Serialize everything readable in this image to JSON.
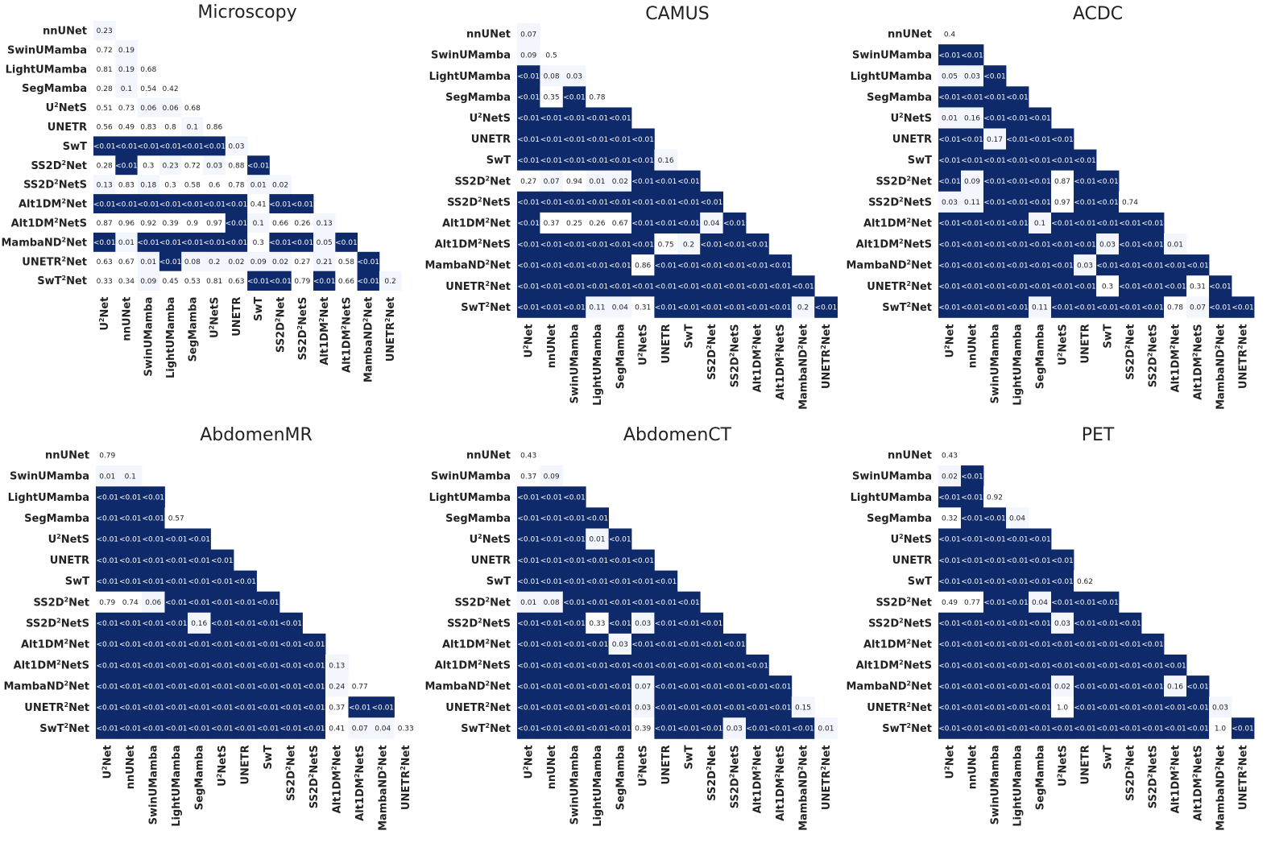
{
  "colors": {
    "significant": "#0e2a6b",
    "low": "#ffffff",
    "high": "#f3f6fc",
    "text_dark": "#222222",
    "text_light": "#ffffff"
  },
  "labels": [
    "U2Net",
    "nnUNet",
    "SwinUMamba",
    "LightUMamba",
    "SegMamba",
    "U2NetS",
    "UNETR",
    "SwT",
    "SS2D2Net",
    "SS2D2NetS",
    "Alt1DM2Net",
    "Alt1DM2NetS",
    "MambaND2Net",
    "UNETR2Net",
    "SwT2Net"
  ],
  "chart_data": [
    {
      "type": "heatmap",
      "title": "Microscopy",
      "rows": [
        [
          "0.23"
        ],
        [
          "0.72",
          "0.19"
        ],
        [
          "0.81",
          "0.19",
          "0.68"
        ],
        [
          "0.28",
          "0.1",
          "0.54",
          "0.42"
        ],
        [
          "0.51",
          "0.73",
          "0.06",
          "0.06",
          "0.68"
        ],
        [
          "0.56",
          "0.49",
          "0.83",
          "0.8",
          "0.1",
          "0.86"
        ],
        [
          "<0.01",
          "<0.01",
          "<0.01",
          "<0.01",
          "<0.01",
          "<0.01",
          "0.03"
        ],
        [
          "0.28",
          "<0.01",
          "0.3",
          "0.23",
          "0.72",
          "0.03",
          "0.88",
          "<0.01"
        ],
        [
          "0.13",
          "0.83",
          "0.18",
          "0.3",
          "0.58",
          "0.6",
          "0.78",
          "0.01",
          "0.02"
        ],
        [
          "<0.01",
          "<0.01",
          "<0.01",
          "<0.01",
          "<0.01",
          "<0.01",
          "<0.01",
          "0.41",
          "<0.01",
          "<0.01"
        ],
        [
          "0.87",
          "0.96",
          "0.92",
          "0.39",
          "0.9",
          "0.97",
          "<0.01",
          "0.1",
          "0.66",
          "0.26",
          "0.13"
        ],
        [
          "<0.01",
          "0.01",
          "<0.01",
          "<0.01",
          "<0.01",
          "<0.01",
          "<0.01",
          "0.3",
          "<0.01",
          "<0.01",
          "0.05",
          "<0.01"
        ],
        [
          "0.63",
          "0.67",
          "0.01",
          "<0.01",
          "0.08",
          "0.2",
          "0.02",
          "0.09",
          "0.02",
          "0.27",
          "0.21",
          "0.58",
          "<0.01"
        ],
        [
          "0.33",
          "0.34",
          "0.09",
          "0.45",
          "0.53",
          "0.81",
          "0.63",
          "<0.01",
          "<0.01",
          "0.79",
          "<0.01",
          "0.66",
          "<0.01",
          "0.2"
        ]
      ]
    },
    {
      "type": "heatmap",
      "title": "CAMUS",
      "rows": [
        [
          "0.07"
        ],
        [
          "0.09",
          "0.5"
        ],
        [
          "<0.01",
          "0.08",
          "0.03"
        ],
        [
          "<0.01",
          "0.35",
          "<0.01",
          "0.78"
        ],
        [
          "<0.01",
          "<0.01",
          "<0.01",
          "<0.01",
          "<0.01"
        ],
        [
          "<0.01",
          "<0.01",
          "<0.01",
          "<0.01",
          "<0.01",
          "<0.01"
        ],
        [
          "<0.01",
          "<0.01",
          "<0.01",
          "<0.01",
          "<0.01",
          "<0.01",
          "0.16"
        ],
        [
          "0.27",
          "0.07",
          "0.94",
          "0.01",
          "0.02",
          "<0.01",
          "<0.01",
          "<0.01"
        ],
        [
          "<0.01",
          "<0.01",
          "<0.01",
          "<0.01",
          "<0.01",
          "<0.01",
          "<0.01",
          "<0.01",
          "<0.01"
        ],
        [
          "<0.01",
          "0.37",
          "0.25",
          "0.26",
          "0.67",
          "<0.01",
          "<0.01",
          "<0.01",
          "0.04",
          "<0.01"
        ],
        [
          "<0.01",
          "<0.01",
          "<0.01",
          "<0.01",
          "<0.01",
          "<0.01",
          "0.75",
          "0.2",
          "<0.01",
          "<0.01",
          "<0.01"
        ],
        [
          "<0.01",
          "<0.01",
          "<0.01",
          "<0.01",
          "<0.01",
          "0.86",
          "<0.01",
          "<0.01",
          "<0.01",
          "<0.01",
          "<0.01",
          "<0.01"
        ],
        [
          "<0.01",
          "<0.01",
          "<0.01",
          "<0.01",
          "<0.01",
          "<0.01",
          "<0.01",
          "<0.01",
          "<0.01",
          "<0.01",
          "<0.01",
          "<0.01",
          "<0.01"
        ],
        [
          "<0.01",
          "<0.01",
          "<0.01",
          "0.11",
          "0.04",
          "0.31",
          "<0.01",
          "<0.01",
          "<0.01",
          "<0.01",
          "<0.01",
          "<0.01",
          "0.2",
          "<0.01"
        ]
      ]
    },
    {
      "type": "heatmap",
      "title": "ACDC",
      "rows": [
        [
          "0.4"
        ],
        [
          "<0.01",
          "<0.01"
        ],
        [
          "0.05",
          "0.03",
          "<0.01"
        ],
        [
          "<0.01",
          "<0.01",
          "<0.01",
          "<0.01"
        ],
        [
          "0.01",
          "0.16",
          "<0.01",
          "<0.01",
          "<0.01"
        ],
        [
          "<0.01",
          "<0.01",
          "0.17",
          "<0.01",
          "<0.01",
          "<0.01"
        ],
        [
          "<0.01",
          "<0.01",
          "<0.01",
          "<0.01",
          "<0.01",
          "<0.01",
          "<0.01"
        ],
        [
          "<0.01",
          "0.09",
          "<0.01",
          "<0.01",
          "<0.01",
          "0.87",
          "<0.01",
          "<0.01"
        ],
        [
          "0.03",
          "0.11",
          "<0.01",
          "<0.01",
          "<0.01",
          "0.97",
          "<0.01",
          "<0.01",
          "0.74"
        ],
        [
          "<0.01",
          "<0.01",
          "<0.01",
          "<0.01",
          "0.1",
          "<0.01",
          "<0.01",
          "<0.01",
          "<0.01",
          "<0.01"
        ],
        [
          "<0.01",
          "<0.01",
          "<0.01",
          "<0.01",
          "<0.01",
          "<0.01",
          "<0.01",
          "0.03",
          "<0.01",
          "<0.01",
          "0.01"
        ],
        [
          "<0.01",
          "<0.01",
          "<0.01",
          "<0.01",
          "<0.01",
          "<0.01",
          "0.03",
          "<0.01",
          "<0.01",
          "<0.01",
          "<0.01",
          "<0.01"
        ],
        [
          "<0.01",
          "<0.01",
          "<0.01",
          "<0.01",
          "<0.01",
          "<0.01",
          "<0.01",
          "0.3",
          "<0.01",
          "<0.01",
          "<0.01",
          "0.31",
          "<0.01"
        ],
        [
          "<0.01",
          "<0.01",
          "<0.01",
          "<0.01",
          "0.11",
          "<0.01",
          "<0.01",
          "<0.01",
          "<0.01",
          "<0.01",
          "0.78",
          "0.07",
          "<0.01",
          "<0.01"
        ]
      ]
    },
    {
      "type": "heatmap",
      "title": "AbdomenMR",
      "rows": [
        [
          "0.79"
        ],
        [
          "0.01",
          "0.1"
        ],
        [
          "<0.01",
          "<0.01",
          "<0.01"
        ],
        [
          "<0.01",
          "<0.01",
          "<0.01",
          "0.57"
        ],
        [
          "<0.01",
          "<0.01",
          "<0.01",
          "<0.01",
          "<0.01"
        ],
        [
          "<0.01",
          "<0.01",
          "<0.01",
          "<0.01",
          "<0.01",
          "<0.01"
        ],
        [
          "<0.01",
          "<0.01",
          "<0.01",
          "<0.01",
          "<0.01",
          "<0.01",
          "<0.01"
        ],
        [
          "0.79",
          "0.74",
          "0.06",
          "<0.01",
          "<0.01",
          "<0.01",
          "<0.01",
          "<0.01"
        ],
        [
          "<0.01",
          "<0.01",
          "<0.01",
          "<0.01",
          "0.16",
          "<0.01",
          "<0.01",
          "<0.01",
          "<0.01"
        ],
        [
          "<0.01",
          "<0.01",
          "<0.01",
          "<0.01",
          "<0.01",
          "<0.01",
          "<0.01",
          "<0.01",
          "<0.01",
          "<0.01"
        ],
        [
          "<0.01",
          "<0.01",
          "<0.01",
          "<0.01",
          "<0.01",
          "<0.01",
          "<0.01",
          "<0.01",
          "<0.01",
          "<0.01",
          "0.13"
        ],
        [
          "<0.01",
          "<0.01",
          "<0.01",
          "<0.01",
          "<0.01",
          "<0.01",
          "<0.01",
          "<0.01",
          "<0.01",
          "<0.01",
          "0.24",
          "0.77"
        ],
        [
          "<0.01",
          "<0.01",
          "<0.01",
          "<0.01",
          "<0.01",
          "<0.01",
          "<0.01",
          "<0.01",
          "<0.01",
          "<0.01",
          "0.37",
          "<0.01",
          "<0.01"
        ],
        [
          "<0.01",
          "<0.01",
          "<0.01",
          "<0.01",
          "<0.01",
          "<0.01",
          "<0.01",
          "<0.01",
          "<0.01",
          "<0.01",
          "0.41",
          "0.07",
          "0.04",
          "0.33"
        ]
      ]
    },
    {
      "type": "heatmap",
      "title": "AbdomenCT",
      "rows": [
        [
          "0.43"
        ],
        [
          "0.37",
          "0.09"
        ],
        [
          "<0.01",
          "<0.01",
          "<0.01"
        ],
        [
          "<0.01",
          "<0.01",
          "<0.01",
          "<0.01"
        ],
        [
          "<0.01",
          "<0.01",
          "<0.01",
          "0.01",
          "<0.01"
        ],
        [
          "<0.01",
          "<0.01",
          "<0.01",
          "<0.01",
          "<0.01",
          "<0.01"
        ],
        [
          "<0.01",
          "<0.01",
          "<0.01",
          "<0.01",
          "<0.01",
          "<0.01",
          "<0.01"
        ],
        [
          "0.01",
          "0.08",
          "<0.01",
          "<0.01",
          "<0.01",
          "<0.01",
          "<0.01",
          "<0.01"
        ],
        [
          "<0.01",
          "<0.01",
          "<0.01",
          "0.33",
          "<0.01",
          "0.03",
          "<0.01",
          "<0.01",
          "<0.01"
        ],
        [
          "<0.01",
          "<0.01",
          "<0.01",
          "<0.01",
          "0.03",
          "<0.01",
          "<0.01",
          "<0.01",
          "<0.01",
          "<0.01"
        ],
        [
          "<0.01",
          "<0.01",
          "<0.01",
          "<0.01",
          "<0.01",
          "<0.01",
          "<0.01",
          "<0.01",
          "<0.01",
          "<0.01",
          "<0.01"
        ],
        [
          "<0.01",
          "<0.01",
          "<0.01",
          "<0.01",
          "<0.01",
          "0.07",
          "<0.01",
          "<0.01",
          "<0.01",
          "<0.01",
          "<0.01",
          "<0.01"
        ],
        [
          "<0.01",
          "<0.01",
          "<0.01",
          "<0.01",
          "<0.01",
          "0.03",
          "<0.01",
          "<0.01",
          "<0.01",
          "<0.01",
          "<0.01",
          "<0.01",
          "0.15"
        ],
        [
          "<0.01",
          "<0.01",
          "<0.01",
          "<0.01",
          "<0.01",
          "0.39",
          "<0.01",
          "<0.01",
          "<0.01",
          "0.03",
          "<0.01",
          "<0.01",
          "<0.01",
          "0.01"
        ]
      ]
    },
    {
      "type": "heatmap",
      "title": "PET",
      "rows": [
        [
          "0.43"
        ],
        [
          "0.02",
          "<0.01"
        ],
        [
          "<0.01",
          "<0.01",
          "0.92"
        ],
        [
          "0.32",
          "<0.01",
          "<0.01",
          "0.04"
        ],
        [
          "<0.01",
          "<0.01",
          "<0.01",
          "<0.01",
          "<0.01"
        ],
        [
          "<0.01",
          "<0.01",
          "<0.01",
          "<0.01",
          "<0.01",
          "<0.01"
        ],
        [
          "<0.01",
          "<0.01",
          "<0.01",
          "<0.01",
          "<0.01",
          "<0.01",
          "0.62"
        ],
        [
          "0.49",
          "0.77",
          "<0.01",
          "<0.01",
          "0.04",
          "<0.01",
          "<0.01",
          "<0.01"
        ],
        [
          "<0.01",
          "<0.01",
          "<0.01",
          "<0.01",
          "<0.01",
          "0.03",
          "<0.01",
          "<0.01",
          "<0.01"
        ],
        [
          "<0.01",
          "<0.01",
          "<0.01",
          "<0.01",
          "<0.01",
          "<0.01",
          "<0.01",
          "<0.01",
          "<0.01",
          "<0.01"
        ],
        [
          "<0.01",
          "<0.01",
          "<0.01",
          "<0.01",
          "<0.01",
          "<0.01",
          "<0.01",
          "<0.01",
          "<0.01",
          "<0.01",
          "<0.01"
        ],
        [
          "<0.01",
          "<0.01",
          "<0.01",
          "<0.01",
          "<0.01",
          "0.02",
          "<0.01",
          "<0.01",
          "<0.01",
          "<0.01",
          "0.16",
          "<0.01"
        ],
        [
          "<0.01",
          "<0.01",
          "<0.01",
          "<0.01",
          "<0.01",
          "1.0",
          "<0.01",
          "<0.01",
          "<0.01",
          "<0.01",
          "<0.01",
          "<0.01",
          "0.03"
        ],
        [
          "<0.01",
          "<0.01",
          "<0.01",
          "<0.01",
          "<0.01",
          "<0.01",
          "<0.01",
          "<0.01",
          "<0.01",
          "<0.01",
          "<0.01",
          "<0.01",
          "1.0",
          "<0.01"
        ]
      ]
    }
  ]
}
